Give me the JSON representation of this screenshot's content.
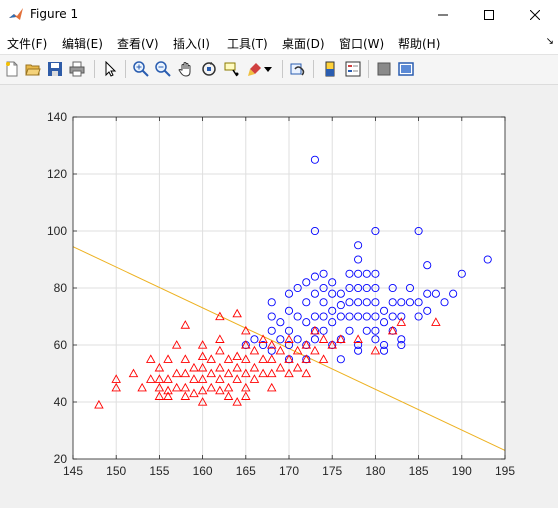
{
  "window": {
    "title": "Figure 1"
  },
  "menu": {
    "items": [
      "文件(F)",
      "编辑(E)",
      "查看(V)",
      "插入(I)",
      "工具(T)",
      "桌面(D)",
      "窗口(W)",
      "帮助(H)"
    ]
  },
  "toolbar": {
    "icons": [
      "new-figure-icon",
      "open-file-icon",
      "save-icon",
      "print-icon",
      "pointer-icon",
      "zoom-in-icon",
      "zoom-out-icon",
      "pan-hand-icon",
      "rotate-3d-icon",
      "data-cursor-icon",
      "brush-icon",
      "link-plot-icon",
      "colorbar-icon",
      "legend-icon",
      "hide-plot-tools-icon",
      "show-plot-tools-icon"
    ]
  },
  "chart_data": {
    "type": "scatter",
    "xlim": [
      145,
      195
    ],
    "ylim": [
      20,
      140
    ],
    "x_ticks": [
      145,
      150,
      155,
      160,
      165,
      170,
      175,
      180,
      185,
      190,
      195
    ],
    "y_ticks": [
      20,
      40,
      60,
      80,
      100,
      120,
      140
    ],
    "grid": true,
    "line": {
      "color": "#edb120",
      "points": [
        [
          145,
          94.5
        ],
        [
          195,
          23
        ]
      ]
    },
    "series": [
      {
        "marker": "circle",
        "color": "#0000ff",
        "points": [
          [
            168,
            70
          ],
          [
            168,
            75
          ],
          [
            168,
            65
          ],
          [
            169,
            68
          ],
          [
            170,
            72
          ],
          [
            170,
            78
          ],
          [
            170,
            65
          ],
          [
            171,
            70
          ],
          [
            171,
            80
          ],
          [
            172,
            75
          ],
          [
            172,
            82
          ],
          [
            172,
            68
          ],
          [
            173,
            125
          ],
          [
            173,
            100
          ],
          [
            173,
            84
          ],
          [
            173,
            78
          ],
          [
            173,
            70
          ],
          [
            173,
            65
          ],
          [
            174,
            85
          ],
          [
            174,
            80
          ],
          [
            174,
            75
          ],
          [
            174,
            70
          ],
          [
            175,
            82
          ],
          [
            175,
            78
          ],
          [
            175,
            72
          ],
          [
            175,
            68
          ],
          [
            176,
            78
          ],
          [
            176,
            74
          ],
          [
            176,
            70
          ],
          [
            177,
            85
          ],
          [
            177,
            80
          ],
          [
            177,
            75
          ],
          [
            177,
            70
          ],
          [
            178,
            95
          ],
          [
            178,
            90
          ],
          [
            178,
            85
          ],
          [
            178,
            80
          ],
          [
            178,
            75
          ],
          [
            178,
            70
          ],
          [
            179,
            85
          ],
          [
            179,
            80
          ],
          [
            179,
            75
          ],
          [
            179,
            70
          ],
          [
            180,
            100
          ],
          [
            180,
            85
          ],
          [
            180,
            80
          ],
          [
            180,
            75
          ],
          [
            180,
            70
          ],
          [
            180,
            65
          ],
          [
            181,
            72
          ],
          [
            181,
            68
          ],
          [
            182,
            80
          ],
          [
            182,
            75
          ],
          [
            182,
            70
          ],
          [
            183,
            75
          ],
          [
            183,
            70
          ],
          [
            184,
            80
          ],
          [
            184,
            75
          ],
          [
            185,
            100
          ],
          [
            185,
            75
          ],
          [
            185,
            70
          ],
          [
            186,
            88
          ],
          [
            186,
            78
          ],
          [
            186,
            72
          ],
          [
            187,
            78
          ],
          [
            188,
            75
          ],
          [
            189,
            78
          ],
          [
            190,
            85
          ],
          [
            193,
            90
          ],
          [
            167,
            60
          ],
          [
            168,
            58
          ],
          [
            169,
            62
          ],
          [
            170,
            60
          ],
          [
            171,
            62
          ],
          [
            172,
            60
          ],
          [
            173,
            62
          ],
          [
            174,
            65
          ],
          [
            175,
            60
          ],
          [
            176,
            62
          ],
          [
            177,
            65
          ],
          [
            178,
            60
          ],
          [
            179,
            65
          ],
          [
            180,
            62
          ],
          [
            181,
            60
          ],
          [
            182,
            65
          ],
          [
            183,
            60
          ],
          [
            165,
            60
          ],
          [
            166,
            62
          ],
          [
            170,
            55
          ],
          [
            172,
            55
          ],
          [
            176,
            55
          ],
          [
            178,
            58
          ],
          [
            181,
            58
          ],
          [
            183,
            62
          ]
        ]
      },
      {
        "marker": "triangle",
        "color": "#ff0000",
        "points": [
          [
            148,
            39
          ],
          [
            150,
            48
          ],
          [
            150,
            45
          ],
          [
            152,
            50
          ],
          [
            154,
            55
          ],
          [
            155,
            42
          ],
          [
            155,
            45
          ],
          [
            155,
            48
          ],
          [
            155,
            52
          ],
          [
            156,
            44
          ],
          [
            156,
            48
          ],
          [
            156,
            55
          ],
          [
            157,
            45
          ],
          [
            157,
            50
          ],
          [
            157,
            60
          ],
          [
            158,
            67
          ],
          [
            158,
            55
          ],
          [
            158,
            50
          ],
          [
            158,
            45
          ],
          [
            158,
            42
          ],
          [
            159,
            48
          ],
          [
            159,
            52
          ],
          [
            160,
            40
          ],
          [
            160,
            44
          ],
          [
            160,
            48
          ],
          [
            160,
            52
          ],
          [
            160,
            56
          ],
          [
            160,
            60
          ],
          [
            161,
            45
          ],
          [
            161,
            50
          ],
          [
            161,
            55
          ],
          [
            162,
            70
          ],
          [
            162,
            62
          ],
          [
            162,
            58
          ],
          [
            162,
            52
          ],
          [
            162,
            48
          ],
          [
            162,
            44
          ],
          [
            163,
            55
          ],
          [
            163,
            50
          ],
          [
            163,
            45
          ],
          [
            164,
            71
          ],
          [
            164,
            40
          ],
          [
            164,
            48
          ],
          [
            164,
            52
          ],
          [
            164,
            56
          ],
          [
            165,
            65
          ],
          [
            165,
            60
          ],
          [
            165,
            55
          ],
          [
            165,
            50
          ],
          [
            165,
            45
          ],
          [
            166,
            58
          ],
          [
            166,
            52
          ],
          [
            166,
            48
          ],
          [
            167,
            62
          ],
          [
            167,
            55
          ],
          [
            167,
            50
          ],
          [
            168,
            60
          ],
          [
            168,
            55
          ],
          [
            168,
            50
          ],
          [
            168,
            45
          ],
          [
            169,
            58
          ],
          [
            169,
            52
          ],
          [
            170,
            62
          ],
          [
            170,
            55
          ],
          [
            170,
            50
          ],
          [
            171,
            58
          ],
          [
            171,
            52
          ],
          [
            172,
            60
          ],
          [
            172,
            55
          ],
          [
            172,
            50
          ],
          [
            173,
            65
          ],
          [
            173,
            58
          ],
          [
            174,
            62
          ],
          [
            174,
            55
          ],
          [
            175,
            60
          ],
          [
            176,
            62
          ],
          [
            178,
            62
          ],
          [
            180,
            58
          ],
          [
            182,
            65
          ],
          [
            183,
            68
          ],
          [
            187,
            68
          ],
          [
            153,
            45
          ],
          [
            154,
            48
          ],
          [
            156,
            42
          ],
          [
            159,
            43
          ],
          [
            163,
            42
          ],
          [
            165,
            42
          ]
        ]
      }
    ]
  }
}
